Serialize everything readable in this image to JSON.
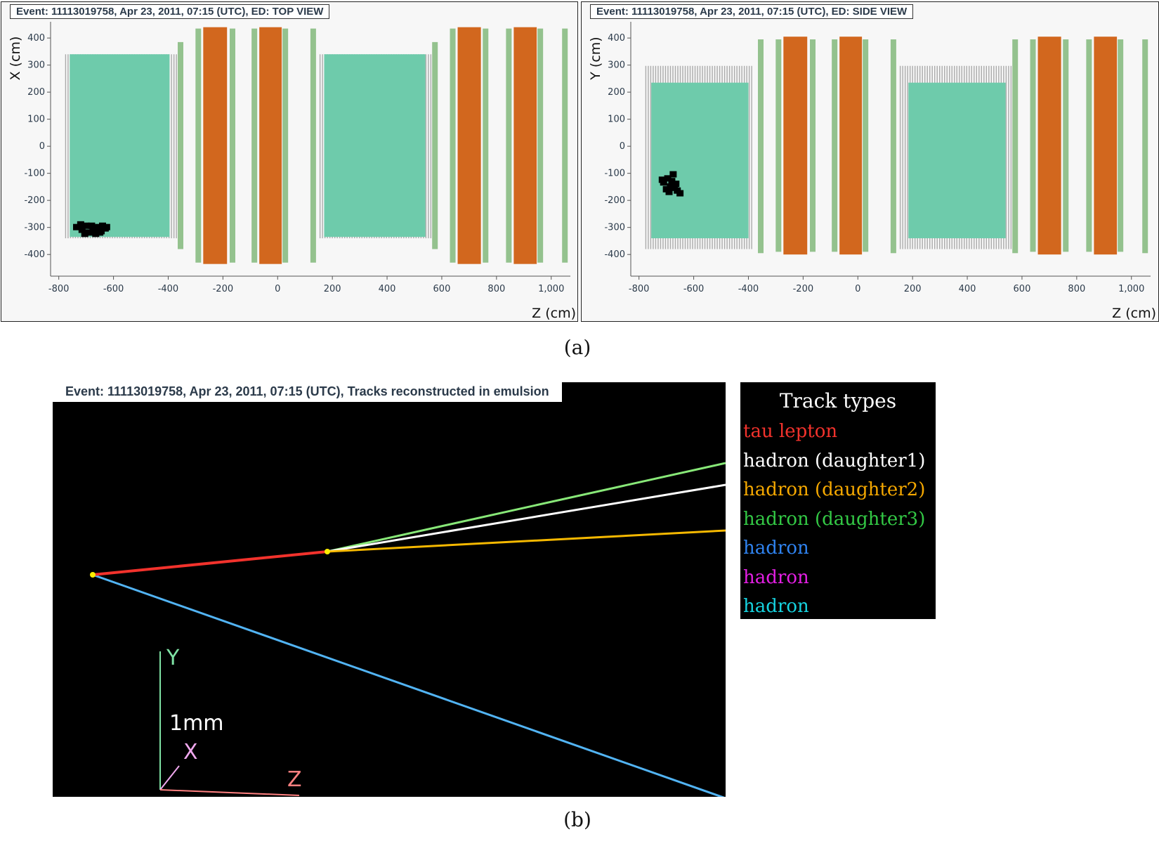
{
  "top_view": {
    "title": "Event: 11113019758, Apr 23, 2011, 07:15 (UTC), ED: TOP VIEW",
    "y_axis_label": "X (cm)",
    "x_axis_label": "Z (cm)",
    "x_ticks": [
      "-800",
      "-600",
      "-400",
      "-200",
      "0",
      "200",
      "400",
      "600",
      "800",
      "1,000"
    ],
    "y_ticks": [
      "400",
      "300",
      "200",
      "100",
      "0",
      "-100",
      "-200",
      "-300",
      "-400"
    ]
  },
  "side_view": {
    "title": "Event: 11113019758, Apr 23, 2011, 07:15 (UTC), ED: SIDE VIEW",
    "y_axis_label": "Y (cm)",
    "x_axis_label": "Z (cm)",
    "x_ticks": [
      "-800",
      "-600",
      "-400",
      "-200",
      "0",
      "200",
      "400",
      "600",
      "800",
      "1,000"
    ],
    "y_ticks": [
      "400",
      "300",
      "200",
      "100",
      "0",
      "-100",
      "-200",
      "-300",
      "-400"
    ]
  },
  "caption_a": "(a)",
  "caption_b": "(b)",
  "emulsion_view": {
    "title": "Event: 11113019758, Apr 23, 2011, 07:15 (UTC), Tracks reconstructed in emulsion",
    "axis_y": "Y",
    "axis_x": "X",
    "axis_z": "Z",
    "scale_label": "1mm"
  },
  "legend": {
    "title": "Track types",
    "items": [
      {
        "label": "tau lepton",
        "color": "#f2322c"
      },
      {
        "label": "hadron (daughter1)",
        "color": "#ffffff"
      },
      {
        "label": "hadron (daughter2)",
        "color": "#f5a800"
      },
      {
        "label": "hadron (daughter3)",
        "color": "#33c845"
      },
      {
        "label": "hadron",
        "color": "#2f83f0"
      },
      {
        "label": "hadron",
        "color": "#e41fe4"
      },
      {
        "label": "hadron",
        "color": "#16d3e0"
      }
    ]
  },
  "colors": {
    "target_tracker": "#6ecbab",
    "magnet_iron": "#d2671e",
    "rpc_plane": "#94c28e",
    "brick_wall": "#aaaaaa",
    "track_tau": "#f2322c",
    "track_d1": "#ffffff",
    "track_d2": "#f5b800",
    "track_d3": "#88e878",
    "track_hadron": "#52b4f4",
    "vertex": "#ffee00"
  }
}
